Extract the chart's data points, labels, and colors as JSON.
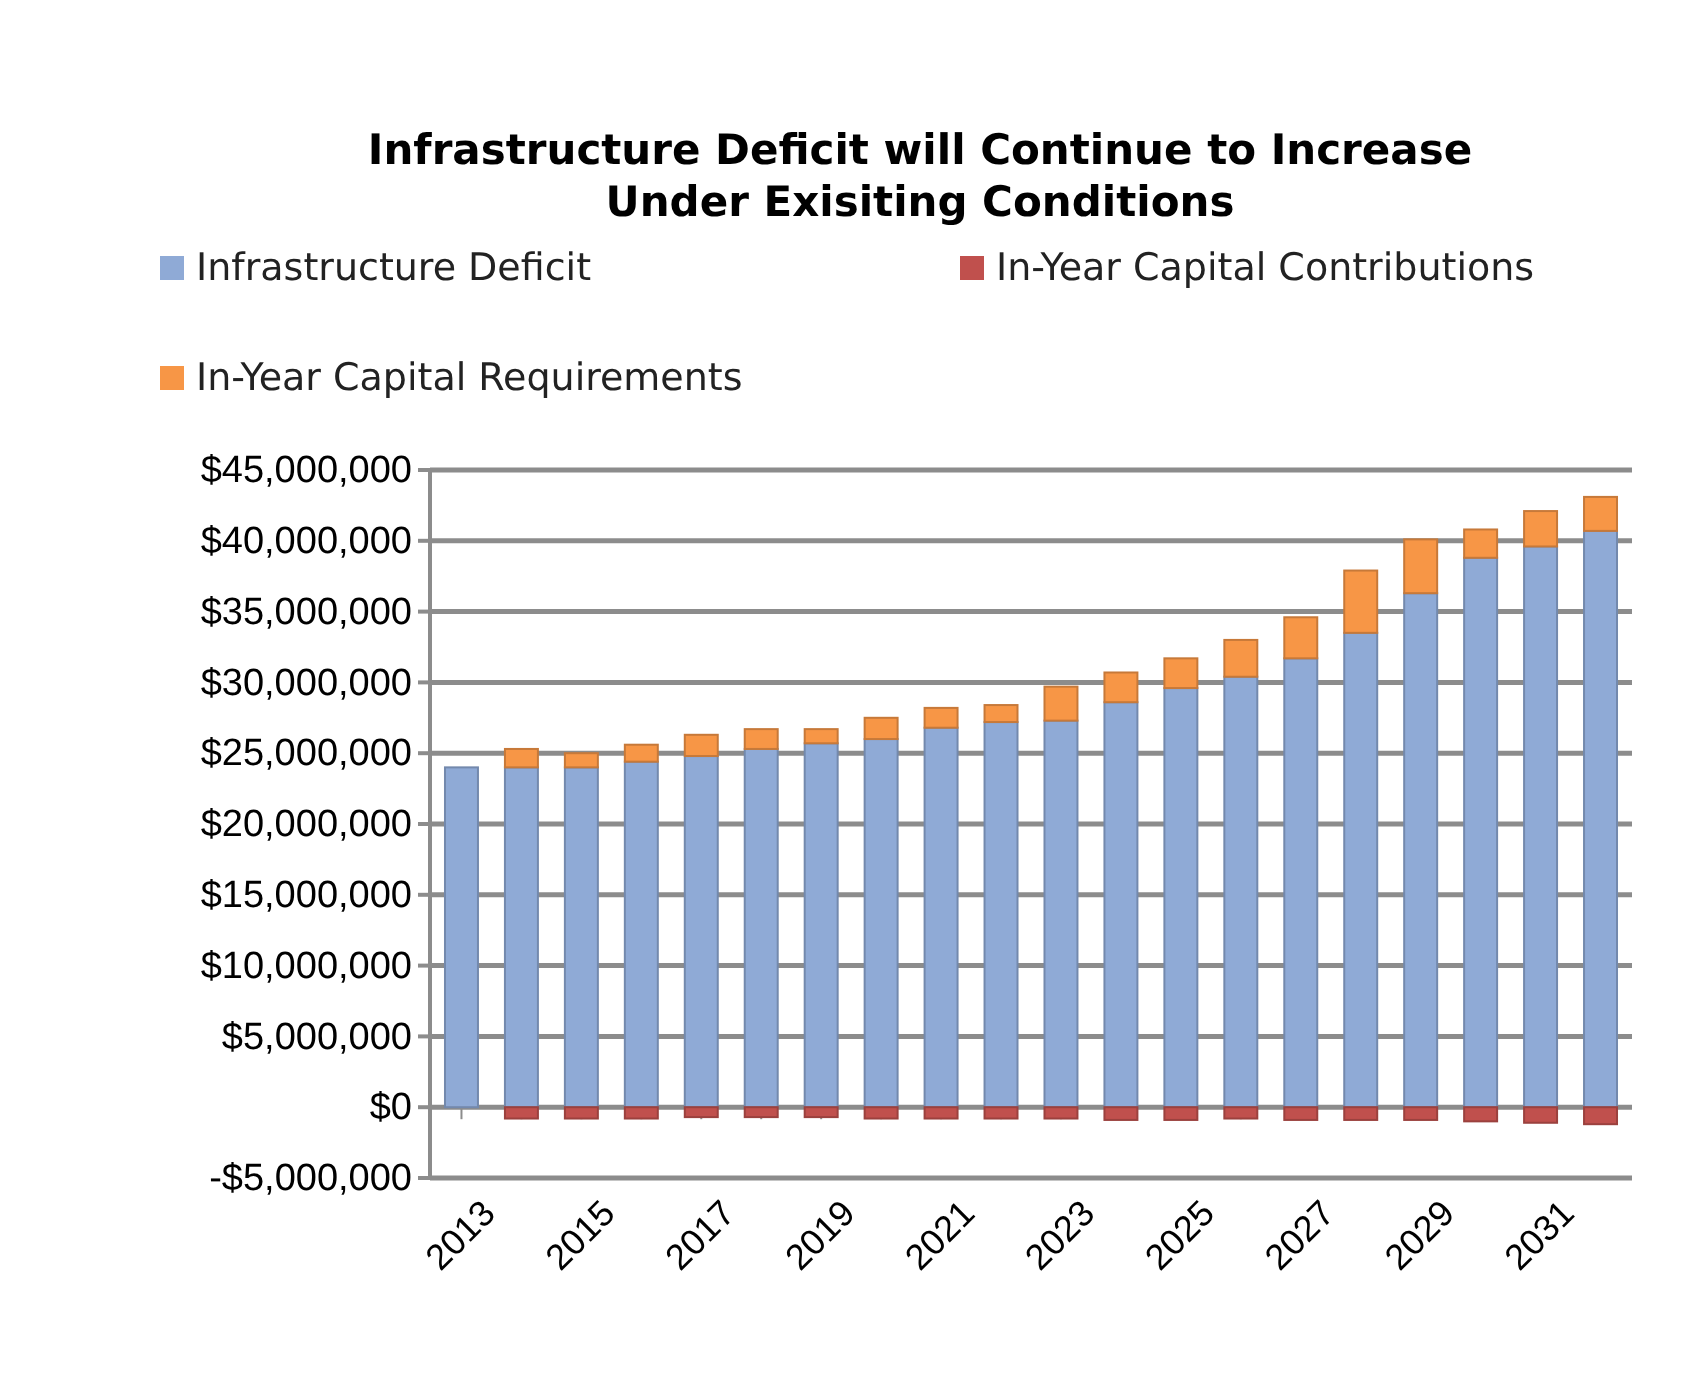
{
  "chart_data": {
    "type": "bar",
    "title": "Infrastructure Deficit will Continue to Increase Under Exisiting Conditions",
    "categories": [
      "2013",
      null,
      "2015",
      null,
      "2017",
      null,
      "2019",
      null,
      "2021",
      null,
      "2023",
      null,
      "2025",
      null,
      "2027",
      null,
      "2029",
      null,
      "2031",
      null
    ],
    "stacked": true,
    "legend": "top",
    "grid": "y",
    "ylim": [
      -5000000,
      45000000
    ],
    "yticks": [
      {
        "value": -5000000,
        "label": "-$5,000,000"
      },
      {
        "value": 0,
        "label": "$0"
      },
      {
        "value": 5000000,
        "label": "$5,000,000"
      },
      {
        "value": 10000000,
        "label": "$10,000,000"
      },
      {
        "value": 15000000,
        "label": "$15,000,000"
      },
      {
        "value": 20000000,
        "label": "$20,000,000"
      },
      {
        "value": 25000000,
        "label": "$25,000,000"
      },
      {
        "value": 30000000,
        "label": "$30,000,000"
      },
      {
        "value": 35000000,
        "label": "$35,000,000"
      },
      {
        "value": 40000000,
        "label": "$40,000,000"
      },
      {
        "value": 45000000,
        "label": "$45,000,000"
      }
    ],
    "series": [
      {
        "name": "Infrastructure Deficit",
        "color": "#8faad6",
        "values": [
          24000000,
          24000000,
          24000000,
          24400000,
          24800000,
          25300000,
          25700000,
          26000000,
          26800000,
          27200000,
          27300000,
          28600000,
          29600000,
          30400000,
          31700000,
          33500000,
          36300000,
          38800000,
          39600000,
          40700000
        ]
      },
      {
        "name": "In-Year Capital Contributions",
        "color": "#c0504d",
        "values": [
          0,
          -800000,
          -800000,
          -800000,
          -700000,
          -700000,
          -700000,
          -800000,
          -800000,
          -800000,
          -800000,
          -900000,
          -900000,
          -800000,
          -900000,
          -900000,
          -900000,
          -1000000,
          -1100000,
          -1200000
        ]
      },
      {
        "name": "In-Year Capital Requirements",
        "color": "#f79646",
        "values": [
          0,
          1300000,
          1000000,
          1200000,
          1500000,
          1400000,
          1000000,
          1500000,
          1400000,
          1200000,
          2400000,
          2100000,
          2100000,
          2600000,
          2900000,
          4400000,
          3800000,
          2000000,
          2500000,
          2400000
        ]
      }
    ]
  }
}
